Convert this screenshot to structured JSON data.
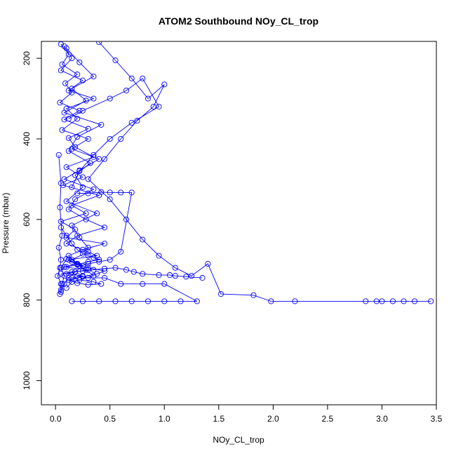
{
  "chart_data": {
    "type": "line",
    "title": "ATOM2 Southbound NOy_CL_trop",
    "xlabel": "NOy_CL_trop",
    "ylabel": "Pressure (mbar)",
    "xlim": [
      -0.13,
      3.5
    ],
    "ylim": [
      1060,
      158
    ],
    "y_reversed": true,
    "x_ticks": [
      0.0,
      0.5,
      1.0,
      1.5,
      2.0,
      2.5,
      3.0,
      3.5
    ],
    "x_tick_labels": [
      "0.0",
      "0.5",
      "1.0",
      "1.5",
      "2.0",
      "2.5",
      "3.0",
      "3.5"
    ],
    "y_ticks": [
      200,
      400,
      600,
      800,
      1000
    ],
    "y_tick_labels": [
      "200",
      "400",
      "600",
      "800",
      "1000"
    ],
    "grid": false,
    "legend": "none",
    "marker": "open-circle",
    "color": "#0000ff",
    "series": [
      {
        "x": [
          0.05,
          0.12,
          0.06,
          0.2,
          0.09,
          0.15,
          0.04,
          0.22,
          0.08,
          0.3,
          0.12,
          0.18,
          0.35,
          0.1,
          0.25,
          0.07,
          0.4,
          0.15,
          0.28,
          0.05,
          0.18,
          0.1,
          0.45,
          0.25,
          0.38,
          0.12,
          0.2,
          0.08,
          0.3,
          0.18,
          0.1,
          0.25,
          0.15,
          0.22,
          0.35,
          0.42,
          0.3,
          0.2,
          0.12,
          0.25,
          0.38,
          0.45,
          0.3,
          0.2,
          0.15,
          0.1,
          0.05,
          0.08,
          0.06,
          0.05
        ],
        "y": [
          165,
          190,
          215,
          240,
          262,
          285,
          310,
          330,
          352,
          375,
          398,
          420,
          445,
          470,
          495,
          515,
          540,
          565,
          585,
          605,
          625,
          645,
          660,
          675,
          690,
          700,
          710,
          718,
          725,
          730,
          735,
          740,
          745,
          750,
          755,
          760,
          762,
          758,
          750,
          742,
          735,
          728,
          720,
          712,
          705,
          698,
          720,
          740,
          760,
          775
        ]
      },
      {
        "x": [
          0.08,
          0.15,
          0.05,
          0.25,
          0.12,
          0.35,
          0.1,
          0.2,
          0.06,
          0.3,
          0.15,
          0.4,
          0.22,
          0.08,
          0.35,
          0.18,
          0.12,
          0.28,
          0.45,
          0.2,
          0.1,
          0.3,
          0.15,
          0.25,
          0.18,
          0.12,
          0.08,
          0.05
        ],
        "y": [
          170,
          200,
          230,
          255,
          280,
          300,
          325,
          350,
          378,
          400,
          425,
          450,
          478,
          500,
          525,
          550,
          575,
          600,
          620,
          640,
          660,
          680,
          700,
          715,
          730,
          745,
          760,
          780
        ]
      },
      {
        "x": [
          0.1,
          0.22,
          0.35,
          0.15,
          0.28,
          0.08,
          0.42,
          0.2,
          0.12,
          0.32,
          0.18,
          0.25,
          0.1,
          0.38,
          0.15,
          0.22,
          0.3,
          0.12,
          0.2,
          0.28,
          0.35,
          0.15,
          0.1
        ],
        "y": [
          175,
          210,
          245,
          275,
          305,
          335,
          365,
          395,
          430,
          460,
          490,
          520,
          555,
          585,
          615,
          645,
          670,
          690,
          710,
          725,
          740,
          755,
          770
        ]
      },
      {
        "x": [
          0.4,
          0.55,
          0.7,
          0.85,
          1.0,
          0.9,
          0.75,
          0.6,
          0.45,
          0.3,
          0.5,
          0.65,
          0.8,
          0.95,
          1.1,
          1.25,
          1.4,
          1.52,
          1.82,
          1.98,
          2.2,
          2.85,
          2.95,
          3.0,
          3.1,
          3.2,
          3.3,
          3.45
        ],
        "y": [
          160,
          205,
          250,
          300,
          265,
          320,
          355,
          400,
          450,
          500,
          550,
          600,
          650,
          690,
          720,
          740,
          710,
          785,
          788,
          803,
          803,
          803,
          803,
          803,
          803,
          803,
          803,
          803
        ]
      },
      {
        "x": [
          0.15,
          0.25,
          0.4,
          0.55,
          0.7,
          0.85,
          1.0,
          1.15,
          1.3,
          1.0,
          0.8,
          0.6,
          0.45,
          0.3,
          0.2
        ],
        "y": [
          803,
          803,
          803,
          803,
          803,
          803,
          803,
          803,
          803,
          760,
          760,
          760,
          745,
          745,
          740
        ]
      },
      {
        "x": [
          0.05,
          0.15,
          0.25,
          0.35,
          0.45,
          0.55,
          0.65,
          0.72,
          0.8,
          0.95,
          1.05,
          1.1,
          1.2,
          1.35
        ],
        "y": [
          735,
          730,
          728,
          725,
          722,
          720,
          725,
          730,
          735,
          738,
          738,
          740,
          742,
          745
        ]
      },
      {
        "x": [
          0.2,
          0.3,
          0.42,
          0.5,
          0.6,
          0.7,
          0.6,
          0.5,
          0.4,
          0.3,
          0.22
        ],
        "y": [
          535,
          535,
          532,
          533,
          533,
          533,
          680,
          700,
          705,
          710,
          715
        ]
      },
      {
        "x": [
          0.03,
          0.05,
          0.04,
          0.06,
          0.03,
          0.05,
          0.04,
          0.02,
          0.05,
          0.04
        ],
        "y": [
          440,
          510,
          570,
          640,
          670,
          700,
          720,
          740,
          760,
          785
        ]
      },
      {
        "x": [
          0.12,
          0.25,
          0.5,
          0.65,
          0.8,
          0.95,
          0.7,
          0.5,
          0.35,
          0.22,
          0.15
        ],
        "y": [
          350,
          330,
          300,
          280,
          250,
          320,
          360,
          400,
          440,
          480,
          520
        ]
      },
      {
        "x": [
          0.05,
          0.1,
          0.15,
          0.2,
          0.25,
          0.3,
          0.35,
          0.4,
          0.3,
          0.2,
          0.1
        ],
        "y": [
          620,
          640,
          660,
          675,
          685,
          690,
          695,
          700,
          705,
          712,
          718
        ]
      }
    ]
  }
}
